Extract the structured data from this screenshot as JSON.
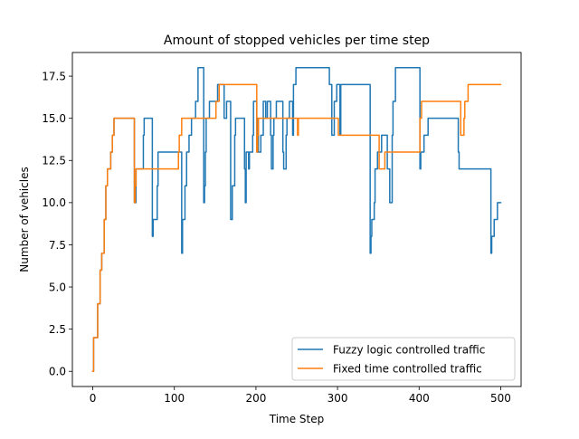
{
  "chart_data": {
    "type": "line",
    "title": "Amount of stopped vehicles per time step",
    "xlabel": "Time Step",
    "ylabel": "Number of vehicles",
    "xlim": [
      -25,
      525
    ],
    "ylim": [
      -0.9,
      18.9
    ],
    "xticks": [
      0,
      100,
      200,
      300,
      400,
      500
    ],
    "xtick_labels": [
      "0",
      "100",
      "200",
      "300",
      "400",
      "500"
    ],
    "yticks": [
      0.0,
      2.5,
      5.0,
      7.5,
      10.0,
      12.5,
      15.0,
      17.5
    ],
    "ytick_labels": [
      "0.0",
      "2.5",
      "5.0",
      "7.5",
      "10.0",
      "12.5",
      "15.0",
      "17.5"
    ],
    "grid": false,
    "legend_position": "lower right",
    "step": true,
    "series": [
      {
        "name": "Fuzzy logic controlled traffic",
        "color": "#1f77b4",
        "points": [
          [
            0,
            0
          ],
          [
            1,
            2
          ],
          [
            5,
            2
          ],
          [
            6,
            4
          ],
          [
            8,
            4
          ],
          [
            9,
            6
          ],
          [
            10,
            6
          ],
          [
            11,
            7
          ],
          [
            13,
            7
          ],
          [
            14,
            9
          ],
          [
            15,
            9
          ],
          [
            16,
            11
          ],
          [
            17,
            11
          ],
          [
            18,
            12
          ],
          [
            21,
            12
          ],
          [
            22,
            13
          ],
          [
            23,
            13
          ],
          [
            24,
            14
          ],
          [
            25,
            14
          ],
          [
            26,
            15
          ],
          [
            50,
            15
          ],
          [
            51,
            10
          ],
          [
            52,
            10
          ],
          [
            53,
            12
          ],
          [
            61,
            12
          ],
          [
            62,
            14
          ],
          [
            63,
            15
          ],
          [
            72,
            15
          ],
          [
            73,
            8
          ],
          [
            74,
            9
          ],
          [
            78,
            9
          ],
          [
            79,
            11
          ],
          [
            80,
            13
          ],
          [
            108,
            13
          ],
          [
            109,
            7
          ],
          [
            110,
            9
          ],
          [
            112,
            9
          ],
          [
            113,
            11
          ],
          [
            114,
            11
          ],
          [
            115,
            13
          ],
          [
            117,
            13
          ],
          [
            118,
            14
          ],
          [
            120,
            14
          ],
          [
            121,
            15
          ],
          [
            125,
            15
          ],
          [
            126,
            16
          ],
          [
            128,
            16
          ],
          [
            129,
            18
          ],
          [
            135,
            18
          ],
          [
            136,
            10
          ],
          [
            137,
            11
          ],
          [
            138,
            13
          ],
          [
            139,
            15
          ],
          [
            142,
            15
          ],
          [
            143,
            16
          ],
          [
            152,
            16
          ],
          [
            153,
            17
          ],
          [
            160,
            17
          ],
          [
            161,
            15
          ],
          [
            163,
            15
          ],
          [
            164,
            16
          ],
          [
            168,
            16
          ],
          [
            169,
            9
          ],
          [
            170,
            9
          ],
          [
            171,
            11
          ],
          [
            173,
            11
          ],
          [
            174,
            14
          ],
          [
            175,
            15
          ],
          [
            185,
            15
          ],
          [
            186,
            12
          ],
          [
            187,
            10
          ],
          [
            188,
            13
          ],
          [
            190,
            13
          ],
          [
            191,
            12
          ],
          [
            192,
            13
          ],
          [
            195,
            13
          ],
          [
            196,
            14
          ],
          [
            197,
            16
          ],
          [
            200,
            16
          ],
          [
            201,
            13
          ],
          [
            202,
            15
          ],
          [
            203,
            13
          ],
          [
            205,
            13
          ],
          [
            206,
            14
          ],
          [
            208,
            14
          ],
          [
            209,
            16
          ],
          [
            211,
            16
          ],
          [
            212,
            15
          ],
          [
            213,
            15
          ],
          [
            214,
            16
          ],
          [
            217,
            16
          ],
          [
            218,
            14
          ],
          [
            219,
            12
          ],
          [
            220,
            12
          ],
          [
            221,
            14
          ],
          [
            222,
            15
          ],
          [
            224,
            15
          ],
          [
            225,
            16
          ],
          [
            232,
            16
          ],
          [
            233,
            13
          ],
          [
            234,
            12
          ],
          [
            236,
            12
          ],
          [
            237,
            14
          ],
          [
            238,
            15
          ],
          [
            240,
            15
          ],
          [
            241,
            16
          ],
          [
            244,
            16
          ],
          [
            245,
            14
          ],
          [
            246,
            17
          ],
          [
            248,
            17
          ],
          [
            249,
            18
          ],
          [
            289,
            18
          ],
          [
            290,
            17
          ],
          [
            292,
            17
          ],
          [
            293,
            14
          ],
          [
            295,
            14
          ],
          [
            296,
            16
          ],
          [
            298,
            16
          ],
          [
            299,
            17
          ],
          [
            302,
            17
          ],
          [
            303,
            14
          ],
          [
            304,
            17
          ],
          [
            330,
            17
          ],
          [
            339,
            17
          ],
          [
            340,
            7
          ],
          [
            341,
            8
          ],
          [
            342,
            9
          ],
          [
            344,
            9
          ],
          [
            345,
            10
          ],
          [
            346,
            12
          ],
          [
            348,
            12
          ],
          [
            349,
            13
          ],
          [
            353,
            13
          ],
          [
            354,
            14
          ],
          [
            360,
            14
          ],
          [
            361,
            12
          ],
          [
            363,
            12
          ],
          [
            364,
            10
          ],
          [
            366,
            10
          ],
          [
            367,
            14
          ],
          [
            368,
            16
          ],
          [
            370,
            16
          ],
          [
            371,
            18
          ],
          [
            400,
            18
          ],
          [
            401,
            12
          ],
          [
            402,
            13
          ],
          [
            405,
            13
          ],
          [
            406,
            14
          ],
          [
            410,
            14
          ],
          [
            411,
            15
          ],
          [
            447,
            15
          ],
          [
            448,
            13
          ],
          [
            449,
            12
          ],
          [
            487,
            12
          ],
          [
            488,
            7
          ],
          [
            489,
            8
          ],
          [
            491,
            8
          ],
          [
            492,
            9
          ],
          [
            495,
            9
          ],
          [
            496,
            10
          ],
          [
            500,
            10
          ]
        ]
      },
      {
        "name": "Fixed time controlled traffic",
        "color": "#ff7f0e",
        "points": [
          [
            0,
            0
          ],
          [
            1,
            2
          ],
          [
            5,
            2
          ],
          [
            6,
            4
          ],
          [
            8,
            4
          ],
          [
            9,
            6
          ],
          [
            10,
            6
          ],
          [
            11,
            7
          ],
          [
            13,
            7
          ],
          [
            14,
            9
          ],
          [
            15,
            9
          ],
          [
            16,
            11
          ],
          [
            17,
            11
          ],
          [
            18,
            12
          ],
          [
            21,
            12
          ],
          [
            22,
            13
          ],
          [
            23,
            13
          ],
          [
            24,
            14
          ],
          [
            25,
            14
          ],
          [
            26,
            15
          ],
          [
            50,
            15
          ],
          [
            51,
            10
          ],
          [
            52,
            11
          ],
          [
            53,
            12
          ],
          [
            104,
            12
          ],
          [
            105,
            13
          ],
          [
            106,
            14
          ],
          [
            108,
            14
          ],
          [
            109,
            15
          ],
          [
            150,
            15
          ],
          [
            151,
            16
          ],
          [
            154,
            16
          ],
          [
            155,
            17
          ],
          [
            200,
            17
          ],
          [
            201,
            13
          ],
          [
            202,
            14
          ],
          [
            203,
            15
          ],
          [
            250,
            15
          ],
          [
            251,
            14
          ],
          [
            252,
            15
          ],
          [
            300,
            15
          ],
          [
            301,
            14
          ],
          [
            350,
            14
          ],
          [
            351,
            12
          ],
          [
            357,
            12
          ],
          [
            358,
            13
          ],
          [
            400,
            13
          ],
          [
            401,
            15
          ],
          [
            403,
            16
          ],
          [
            450,
            16
          ],
          [
            451,
            14
          ],
          [
            454,
            14
          ],
          [
            455,
            15
          ],
          [
            456,
            16
          ],
          [
            459,
            16
          ],
          [
            460,
            17
          ],
          [
            500,
            17
          ]
        ]
      }
    ]
  }
}
